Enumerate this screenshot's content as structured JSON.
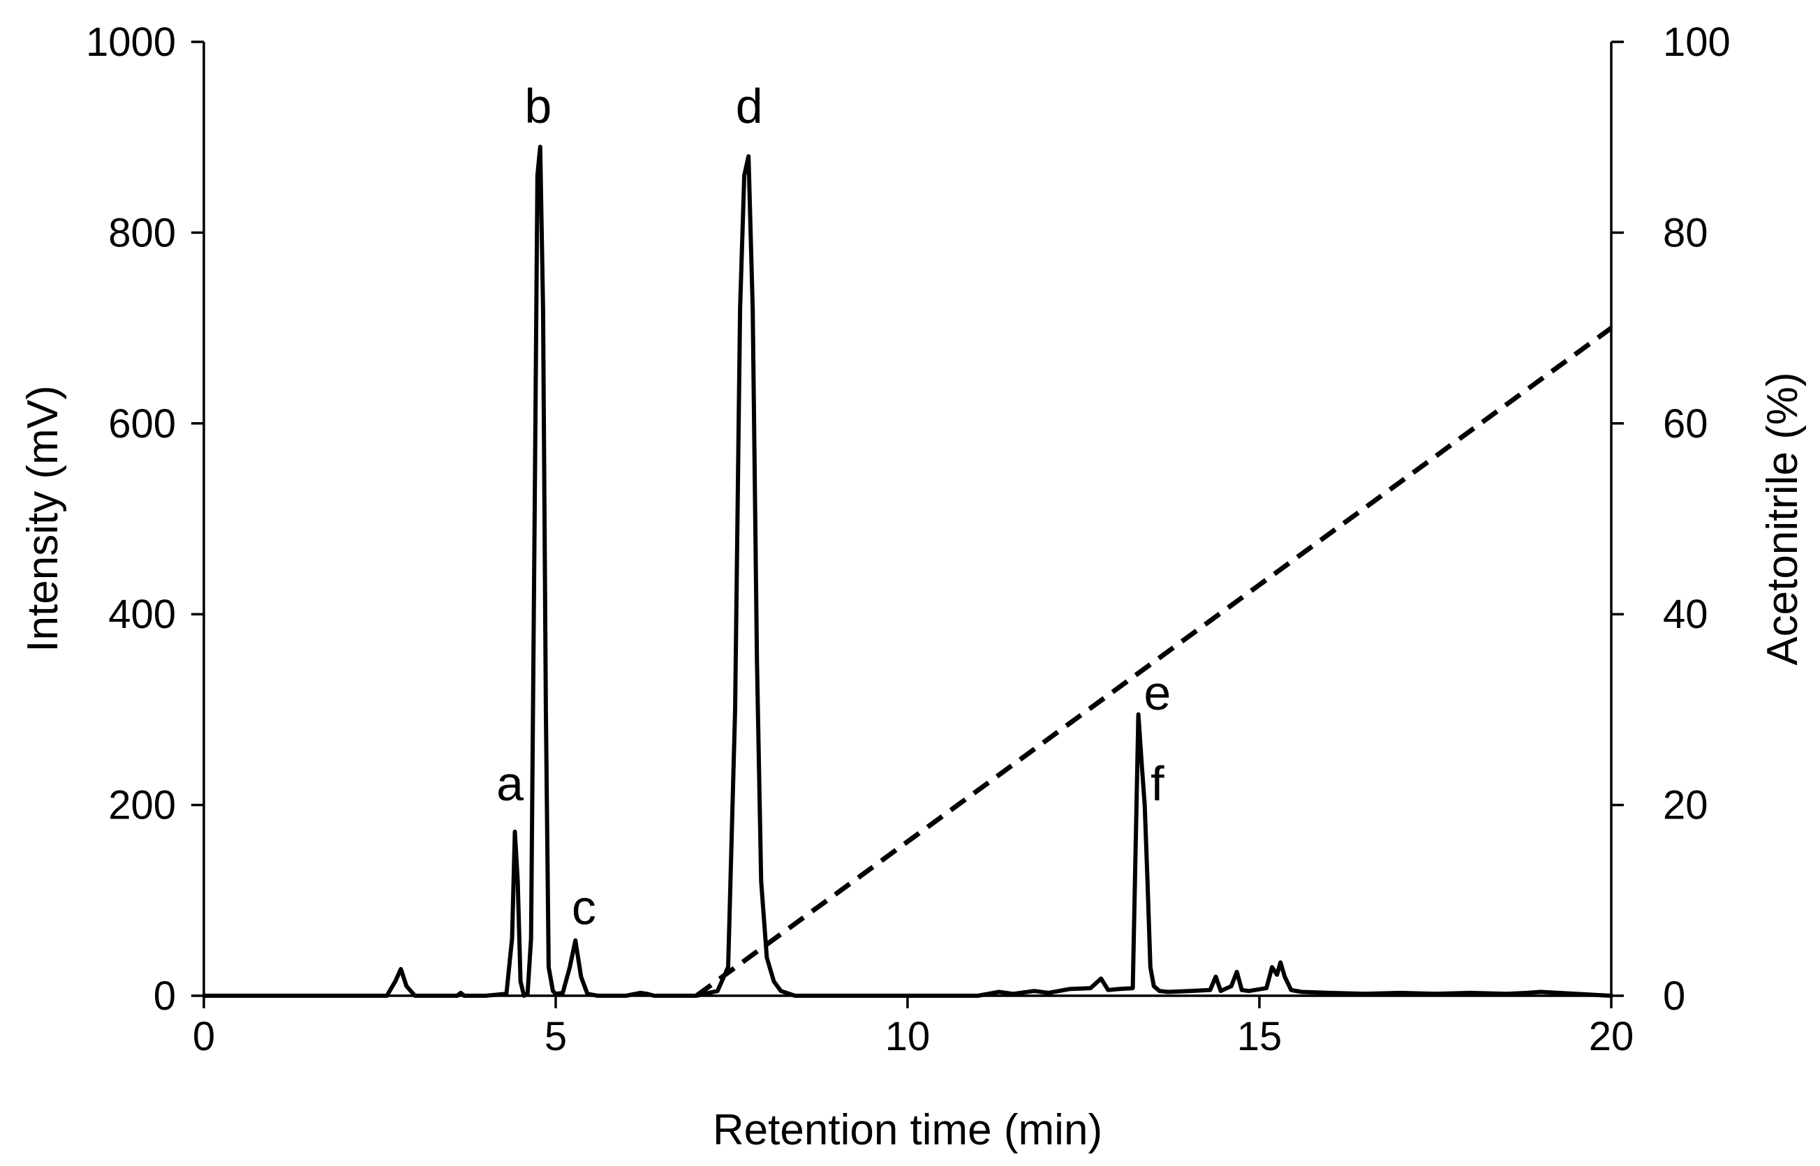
{
  "chart_data": {
    "type": "line",
    "xlabel": "Retention time (min)",
    "ylabel": "Intensity (mV)",
    "y2label": "Acetonitrile (%)",
    "xlim": [
      0,
      20
    ],
    "ylim": [
      0,
      1000
    ],
    "y2lim": [
      0,
      100
    ],
    "x_ticks": [
      0,
      5,
      10,
      15,
      20
    ],
    "y_ticks": [
      0,
      200,
      400,
      600,
      800,
      1000
    ],
    "y2_ticks": [
      0,
      20,
      40,
      60,
      80,
      100
    ],
    "grid": false,
    "series": [
      {
        "axis": "left",
        "style": "solid",
        "color": "#000000",
        "x": [
          0,
          2.6,
          2.72,
          2.8,
          2.88,
          3.0,
          3.6,
          3.65,
          3.7,
          4.0,
          4.3,
          4.38,
          4.42,
          4.46,
          4.5,
          4.55,
          4.6,
          4.65,
          4.7,
          4.74,
          4.78,
          4.82,
          4.86,
          4.9,
          4.96,
          5.0,
          5.1,
          5.2,
          5.28,
          5.36,
          5.45,
          5.6,
          6.0,
          6.2,
          6.3,
          6.4,
          7.0,
          7.3,
          7.45,
          7.55,
          7.62,
          7.68,
          7.74,
          7.8,
          7.86,
          7.92,
          8.0,
          8.1,
          8.2,
          8.4,
          9.0,
          11.0,
          11.3,
          11.5,
          11.8,
          12.0,
          12.3,
          12.6,
          12.75,
          12.85,
          13.0,
          13.2,
          13.28,
          13.33,
          13.37,
          13.41,
          13.45,
          13.5,
          13.58,
          13.7,
          14.0,
          14.3,
          14.38,
          14.45,
          14.6,
          14.68,
          14.75,
          14.85,
          15.1,
          15.18,
          15.25,
          15.3,
          15.36,
          15.45,
          15.6,
          16.0,
          16.5,
          17.0,
          17.5,
          18.0,
          18.5,
          18.8,
          19.0,
          19.5,
          20.0
        ],
        "y": [
          0,
          0,
          15,
          28,
          10,
          0,
          0,
          3,
          0,
          0,
          2,
          60,
          172,
          120,
          15,
          0,
          2,
          60,
          500,
          860,
          890,
          720,
          300,
          30,
          5,
          2,
          3,
          30,
          58,
          20,
          2,
          0,
          0,
          3,
          2,
          0,
          0,
          5,
          30,
          300,
          720,
          860,
          880,
          720,
          350,
          120,
          40,
          15,
          5,
          0,
          0,
          0,
          4,
          2,
          5,
          3,
          7,
          8,
          18,
          6,
          7,
          8,
          295,
          240,
          200,
          120,
          30,
          10,
          5,
          4,
          5,
          6,
          20,
          5,
          10,
          25,
          6,
          5,
          8,
          30,
          22,
          35,
          20,
          6,
          4,
          3,
          2,
          3,
          2,
          3,
          2,
          3,
          4,
          2,
          0
        ]
      },
      {
        "axis": "right",
        "style": "dashed",
        "color": "#000000",
        "x": [
          7.0,
          20.0
        ],
        "y": [
          0,
          70
        ]
      }
    ],
    "annotations": [
      {
        "text": "a",
        "x": 4.35,
        "y": 205
      },
      {
        "text": "b",
        "x": 4.75,
        "y": 915
      },
      {
        "text": "c",
        "x": 5.4,
        "y": 75
      },
      {
        "text": "d",
        "x": 7.75,
        "y": 915
      },
      {
        "text": "e",
        "x": 13.55,
        "y": 300
      },
      {
        "text": "f",
        "x": 13.55,
        "y": 205
      }
    ]
  }
}
